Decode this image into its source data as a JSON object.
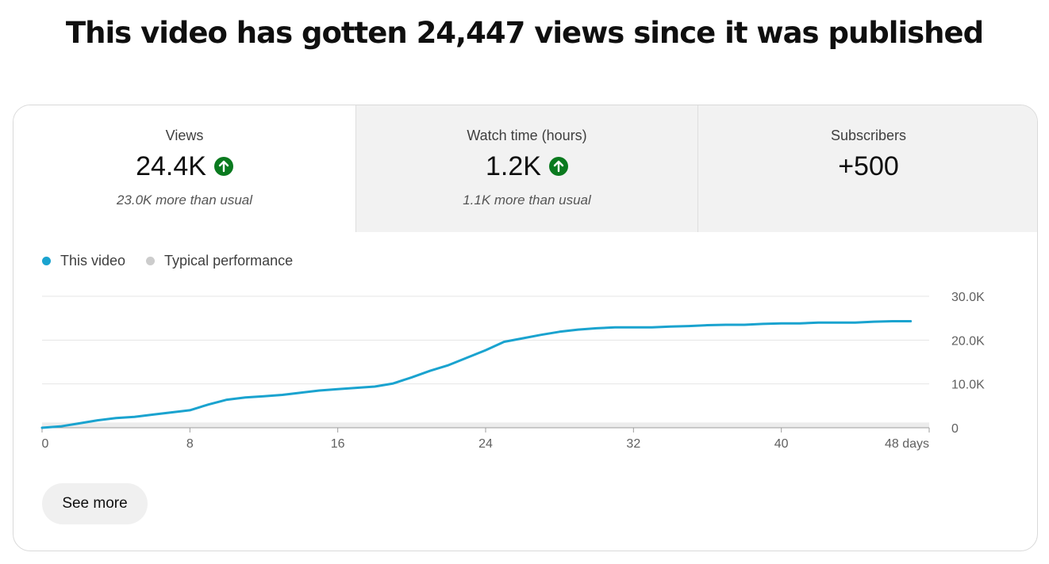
{
  "headline": "This video has gotten 24,447 views since it was published",
  "metrics": [
    {
      "label": "Views",
      "value": "24.4K",
      "note": "23.0K more than usual",
      "trend": "up"
    },
    {
      "label": "Watch time (hours)",
      "value": "1.2K",
      "note": "1.1K more than usual",
      "trend": "up"
    },
    {
      "label": "Subscribers",
      "value": "+500"
    }
  ],
  "legend": [
    {
      "label": "This video",
      "color": "#1aa3cf"
    },
    {
      "label": "Typical performance",
      "color": "#cccccc"
    }
  ],
  "colors": {
    "accent": "#1aa3cf",
    "up_badge": "#0a7a1f"
  },
  "buttons": {
    "see_more": "See more"
  },
  "chart_data": {
    "type": "line",
    "title": "",
    "xlabel": "",
    "ylabel": "",
    "xlim": [
      0,
      48
    ],
    "ylim": [
      0,
      30000
    ],
    "x_ticks": [
      0,
      8,
      16,
      24,
      32,
      40,
      48
    ],
    "x_tick_labels": [
      "0",
      "8",
      "16",
      "24",
      "32",
      "40",
      "48 days"
    ],
    "y_ticks": [
      0,
      10000,
      20000,
      30000
    ],
    "y_tick_labels": [
      "0",
      "10.0K",
      "20.0K",
      "30.0K"
    ],
    "y_axis_side": "right",
    "grid": true,
    "series": [
      {
        "name": "This video",
        "color": "#1aa3cf",
        "x": [
          0,
          1,
          2,
          3,
          4,
          5,
          6,
          7,
          8,
          9,
          10,
          11,
          12,
          13,
          14,
          15,
          16,
          17,
          18,
          19,
          20,
          21,
          22,
          23,
          24,
          25,
          26,
          27,
          28,
          29,
          30,
          31,
          32,
          33,
          34,
          35,
          36,
          37,
          38,
          39,
          40,
          41,
          42,
          43,
          44,
          45,
          46,
          47
        ],
        "y": [
          0,
          300,
          1000,
          1700,
          2200,
          2500,
          3000,
          3500,
          4000,
          5300,
          6400,
          6900,
          7200,
          7500,
          8000,
          8500,
          8800,
          9100,
          9400,
          10100,
          11500,
          13000,
          14300,
          16000,
          17700,
          19600,
          20400,
          21200,
          21900,
          22400,
          22700,
          22900,
          22900,
          22900,
          23100,
          23200,
          23400,
          23500,
          23500,
          23700,
          23800,
          23800,
          24000,
          24000,
          24000,
          24200,
          24300,
          24300
        ]
      },
      {
        "name": "Typical performance",
        "color": "#cccccc",
        "x": [
          0,
          48
        ],
        "y": [
          1200,
          1200
        ]
      }
    ]
  }
}
